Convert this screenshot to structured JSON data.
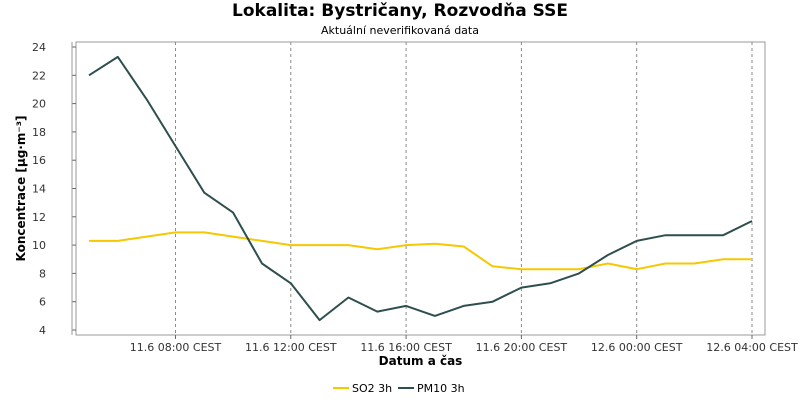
{
  "page": {
    "title": "Lokalita: Bystričany, Rozvodňa SSE",
    "subtitle": "Aktuální neverifikovaná data"
  },
  "chart_data": {
    "type": "line",
    "title": "Lokalita: Bystričany, Rozvodňa SSE",
    "subtitle": "Aktuální neverifikovaná data",
    "xlabel": "Datum a čas",
    "ylabel": "Koncentrace [µg·m⁻³]",
    "ylim": [
      4,
      24
    ],
    "yticks": [
      4,
      6,
      8,
      10,
      12,
      14,
      16,
      18,
      20,
      22,
      24
    ],
    "x_hours": [
      5,
      6,
      7,
      8,
      9,
      10,
      11,
      12,
      13,
      14,
      15,
      16,
      17,
      18,
      19,
      20,
      21,
      22,
      23,
      24,
      25,
      26,
      27,
      28
    ],
    "xlim": [
      4.5,
      28.5
    ],
    "xticks": [
      {
        "x": 8,
        "label": "11.6 08:00 CEST"
      },
      {
        "x": 12,
        "label": "11.6 12:00 CEST"
      },
      {
        "x": 16,
        "label": "11.6 16:00 CEST"
      },
      {
        "x": 20,
        "label": "11.6 20:00 CEST"
      },
      {
        "x": 24,
        "label": "12.6 00:00 CEST"
      },
      {
        "x": 28,
        "label": "12.6 04:00 CEST"
      }
    ],
    "grid": true,
    "legend_position": "bottom",
    "series": [
      {
        "name": "SO2 3h",
        "color": "#f5c800",
        "values": [
          10.3,
          10.3,
          10.6,
          10.9,
          10.9,
          10.6,
          10.3,
          10.0,
          10.0,
          10.0,
          9.7,
          10.0,
          10.1,
          9.9,
          8.5,
          8.3,
          8.3,
          8.3,
          8.7,
          8.3,
          8.7,
          8.7,
          9.0,
          9.0
        ]
      },
      {
        "name": "PM10 3h",
        "color": "#2f4f4f",
        "values": [
          22.0,
          23.3,
          20.3,
          17.0,
          13.7,
          12.3,
          8.7,
          7.3,
          4.7,
          6.3,
          5.3,
          5.7,
          5.0,
          5.7,
          6.0,
          7.0,
          7.3,
          8.0,
          9.3,
          10.3,
          10.7,
          10.7,
          10.7,
          11.7
        ]
      }
    ]
  }
}
